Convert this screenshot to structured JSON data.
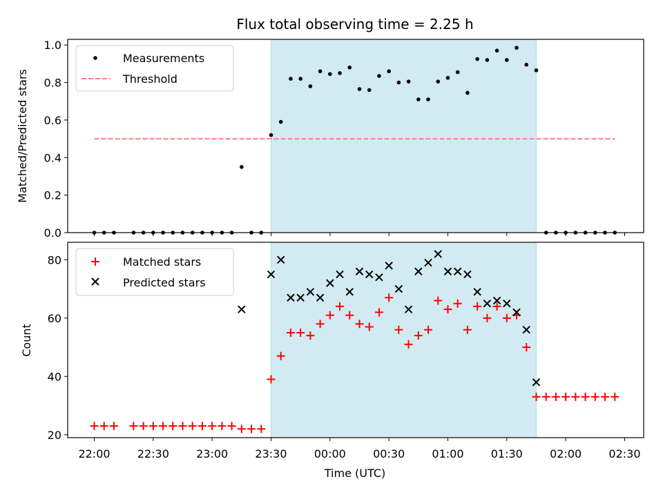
{
  "title": "Flux total observing time = 2.25 h",
  "xlabel": "Time (UTC)",
  "x_ticks": [
    "22:00",
    "22:30",
    "23:00",
    "23:30",
    "00:00",
    "00:30",
    "01:00",
    "01:30",
    "02:00",
    "02:30"
  ],
  "colors": {
    "measurement": "#000000",
    "threshold": "#ff7f7f",
    "matched": "#ff0000",
    "predicted": "#000000",
    "shade": "#add8e6"
  },
  "chart_data": [
    {
      "type": "scatter",
      "ylabel": "Matched/Predicted stars",
      "ylim": [
        0,
        1.03
      ],
      "y_ticks": [
        "0.0",
        "0.2",
        "0.4",
        "0.6",
        "0.8",
        "1.0"
      ],
      "legend": "upper-left",
      "shaded_x": [
        "23:30",
        "01:45"
      ],
      "series": [
        {
          "name": "Measurements",
          "x": [
            "22:00",
            "22:05",
            "22:10",
            "22:20",
            "22:25",
            "22:30",
            "22:35",
            "22:40",
            "22:45",
            "22:50",
            "22:55",
            "23:00",
            "23:05",
            "23:10",
            "23:15",
            "23:20",
            "23:25",
            "23:30",
            "23:35",
            "23:40",
            "23:45",
            "23:50",
            "23:55",
            "00:00",
            "00:05",
            "00:10",
            "00:15",
            "00:20",
            "00:25",
            "00:30",
            "00:35",
            "00:40",
            "00:45",
            "00:50",
            "00:55",
            "01:00",
            "01:05",
            "01:10",
            "01:15",
            "01:20",
            "01:25",
            "01:30",
            "01:35",
            "01:40",
            "01:45",
            "01:50",
            "01:55",
            "02:00",
            "02:05",
            "02:10",
            "02:15",
            "02:20",
            "02:25"
          ],
          "y": [
            0,
            0,
            0,
            0,
            0,
            0,
            0,
            0,
            0,
            0,
            0,
            0,
            0,
            0,
            0.35,
            0,
            0,
            0.52,
            0.59,
            0.82,
            0.82,
            0.78,
            0.86,
            0.845,
            0.85,
            0.88,
            0.765,
            0.76,
            0.835,
            0.86,
            0.8,
            0.805,
            0.71,
            0.71,
            0.805,
            0.825,
            0.855,
            0.745,
            0.925,
            0.92,
            0.97,
            0.92,
            0.985,
            0.895,
            0.865,
            0,
            0,
            0,
            0,
            0,
            0,
            0,
            0
          ]
        },
        {
          "name": "Threshold",
          "style": "dashed",
          "x": [
            "22:00",
            "02:25"
          ],
          "y": [
            0.5,
            0.5
          ]
        }
      ]
    },
    {
      "type": "scatter",
      "ylabel": "Count",
      "ylim": [
        19,
        86
      ],
      "y_ticks": [
        "20",
        "40",
        "60",
        "80"
      ],
      "legend": "upper-left",
      "shaded_x": [
        "23:30",
        "01:45"
      ],
      "series": [
        {
          "name": "Matched stars",
          "marker": "+",
          "x": [
            "22:00",
            "22:05",
            "22:10",
            "22:20",
            "22:25",
            "22:30",
            "22:35",
            "22:40",
            "22:45",
            "22:50",
            "22:55",
            "23:00",
            "23:05",
            "23:10",
            "23:15",
            "23:20",
            "23:25",
            "23:30",
            "23:35",
            "23:40",
            "23:45",
            "23:50",
            "23:55",
            "00:00",
            "00:05",
            "00:10",
            "00:15",
            "00:20",
            "00:25",
            "00:30",
            "00:35",
            "00:40",
            "00:45",
            "00:50",
            "00:55",
            "01:00",
            "01:05",
            "01:10",
            "01:15",
            "01:20",
            "01:25",
            "01:30",
            "01:35",
            "01:40",
            "01:45",
            "01:50",
            "01:55",
            "02:00",
            "02:05",
            "02:10",
            "02:15",
            "02:20",
            "02:25"
          ],
          "y": [
            23,
            23,
            23,
            23,
            23,
            23,
            23,
            23,
            23,
            23,
            23,
            23,
            23,
            23,
            22,
            22,
            22,
            39,
            47,
            55,
            55,
            54,
            58,
            61,
            64,
            61,
            58,
            57,
            62,
            67,
            56,
            51,
            54,
            56,
            66,
            63,
            65,
            56,
            64,
            60,
            64,
            60,
            61,
            50,
            33,
            33,
            33,
            33,
            33,
            33,
            33,
            33,
            33
          ]
        },
        {
          "name": "Predicted stars",
          "marker": "x",
          "x": [
            "23:15",
            "23:30",
            "23:35",
            "23:40",
            "23:45",
            "23:50",
            "23:55",
            "00:00",
            "00:05",
            "00:10",
            "00:15",
            "00:20",
            "00:25",
            "00:30",
            "00:35",
            "00:40",
            "00:45",
            "00:50",
            "00:55",
            "01:00",
            "01:05",
            "01:10",
            "01:15",
            "01:20",
            "01:25",
            "01:30",
            "01:35",
            "01:40",
            "01:45"
          ],
          "y": [
            63,
            75,
            80,
            67,
            67,
            69,
            67,
            72,
            75,
            69,
            76,
            75,
            74,
            78,
            70,
            63,
            76,
            79,
            82,
            76,
            76,
            75,
            69,
            65,
            66,
            65,
            62,
            56,
            38
          ]
        }
      ]
    }
  ]
}
